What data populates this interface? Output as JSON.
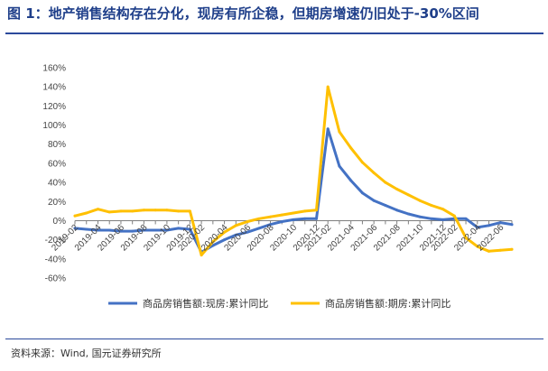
{
  "title": "图 1：地产销售结构存在分化，现房有所企稳，但期房增速仍旧处于-30%区间",
  "source": "资料来源：Wind, 国元证券研究所",
  "colors": {
    "title": "#1f3f8a",
    "rule": "#2b4a9b",
    "series_blue": "#4472c4",
    "series_gold": "#ffc000",
    "axis": "#7f7f7f"
  },
  "chart_data": {
    "type": "line",
    "ylim": [
      -60,
      160
    ],
    "yticks": [
      -60,
      -40,
      -20,
      0,
      20,
      40,
      60,
      80,
      100,
      120,
      140,
      160
    ],
    "ytick_labels": [
      "-60%",
      "-40%",
      "-20%",
      "0%",
      "20%",
      "40%",
      "60%",
      "80%",
      "100%",
      "120%",
      "140%",
      "160%"
    ],
    "x": [
      "2019-02",
      "2019-03",
      "2019-04",
      "2019-05",
      "2019-06",
      "2019-07",
      "2019-08",
      "2019-09",
      "2019-10",
      "2019-11",
      "2019-12",
      "2020-02",
      "2020-03",
      "2020-04",
      "2020-05",
      "2020-06",
      "2020-07",
      "2020-08",
      "2020-09",
      "2020-10",
      "2020-11",
      "2020-12",
      "2021-02",
      "2021-03",
      "2021-04",
      "2021-05",
      "2021-06",
      "2021-07",
      "2021-08",
      "2021-09",
      "2021-10",
      "2021-11",
      "2021-12",
      "2022-02",
      "2022-03",
      "2022-04",
      "2022-05",
      "2022-06",
      "2022-07"
    ],
    "xtick_labels": [
      "2019-02",
      "2019-04",
      "2019-06",
      "2019-08",
      "2019-10",
      "2019-12",
      "2020-02",
      "2020-04",
      "2020-06",
      "2020-08",
      "2020-10",
      "2020-12",
      "2021-02",
      "2021-04",
      "2021-06",
      "2021-08",
      "2021-10",
      "2021-12",
      "2022-02",
      "2022-04",
      "2022-06"
    ],
    "series": [
      {
        "name": "商品房销售额:现房:累计同比",
        "color": "#4472c4",
        "values": [
          -8,
          -9,
          -10,
          -10,
          -11,
          -11,
          -10,
          -10,
          -10,
          -8,
          -9,
          -33,
          -26,
          -20,
          -15,
          -12,
          -8,
          -4,
          -1,
          1,
          2,
          2,
          96,
          57,
          42,
          29,
          21,
          16,
          11,
          7,
          4,
          2,
          1,
          2,
          2,
          -7,
          -5,
          -2,
          -4
        ]
      },
      {
        "name": "商品房销售额:期房:累计同比",
        "color": "#ffc000",
        "values": [
          5,
          8,
          12,
          9,
          10,
          10,
          11,
          11,
          11,
          10,
          10,
          -36,
          -22,
          -12,
          -5,
          -1,
          2,
          4,
          6,
          8,
          10,
          11,
          140,
          93,
          76,
          61,
          50,
          40,
          33,
          27,
          21,
          16,
          12,
          5,
          -18,
          -27,
          -32,
          -31,
          -30
        ]
      }
    ],
    "legend_position": "bottom",
    "grid": false
  }
}
